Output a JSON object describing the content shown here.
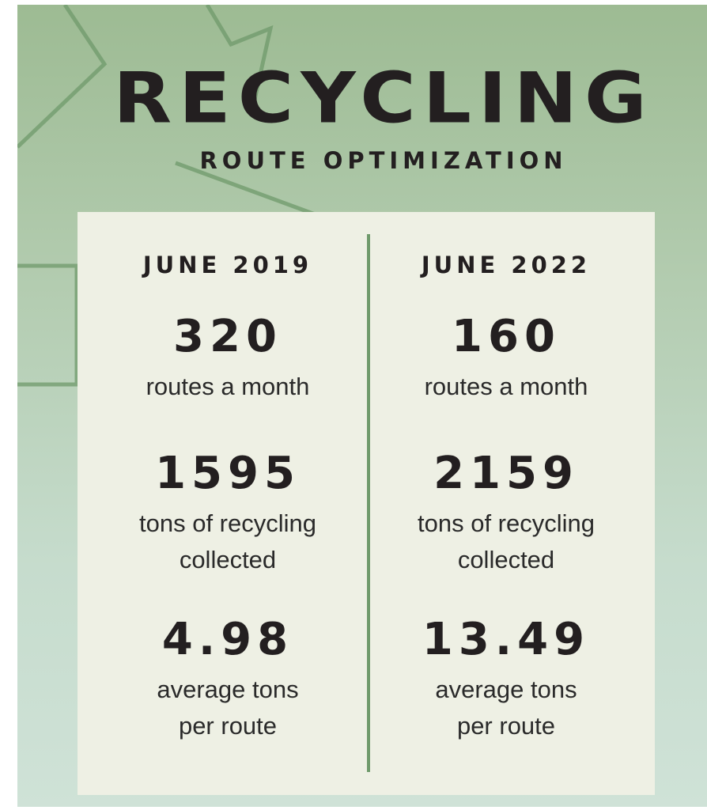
{
  "header": {
    "title": "RECYCLING",
    "subtitle": "ROUTE OPTIMIZATION"
  },
  "columns": [
    {
      "heading": "JUNE 2019",
      "stats": [
        {
          "value": "320",
          "label": [
            "routes a month"
          ]
        },
        {
          "value": "1595",
          "label": [
            "tons of recycling",
            "collected"
          ]
        },
        {
          "value": "4.98",
          "label": [
            "average tons",
            "per route"
          ]
        }
      ]
    },
    {
      "heading": "JUNE 2022",
      "stats": [
        {
          "value": "160",
          "label": [
            "routes a month"
          ]
        },
        {
          "value": "2159",
          "label": [
            "tons of recycling",
            "collected"
          ]
        },
        {
          "value": "13.49",
          "label": [
            "average tons",
            "per route"
          ]
        }
      ]
    }
  ]
}
